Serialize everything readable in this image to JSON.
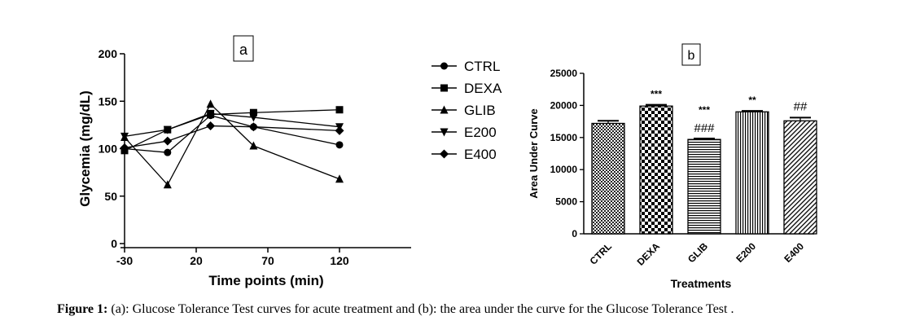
{
  "chart_data": [
    {
      "type": "line",
      "panel_label": "a",
      "x": [
        -30,
        0,
        30,
        60,
        120
      ],
      "xticks": [
        -30,
        20,
        70,
        120
      ],
      "xlim": [
        -30,
        170
      ],
      "yticks": [
        0,
        50,
        100,
        150,
        200
      ],
      "ylim": [
        0,
        200
      ],
      "xlabel": "Time points (min)",
      "ylabel": "Glycemia (mg/dL)",
      "legend_position": "right",
      "series": [
        {
          "name": "CTRL",
          "marker": "circle",
          "values": [
            100,
            96,
            135,
            123,
            104
          ]
        },
        {
          "name": "DEXA",
          "marker": "square",
          "values": [
            98,
            120,
            136,
            138,
            141
          ]
        },
        {
          "name": "GLIB",
          "marker": "triangle-up",
          "values": [
            112,
            62,
            147,
            103,
            68
          ]
        },
        {
          "name": "E200",
          "marker": "triangle-down",
          "values": [
            113,
            120,
            137,
            133,
            123
          ]
        },
        {
          "name": "E400",
          "marker": "diamond",
          "values": [
            101,
            108,
            124,
            123,
            119
          ]
        }
      ]
    },
    {
      "type": "bar",
      "panel_label": "b",
      "categories": [
        "CTRL",
        "DEXA",
        "GLIB",
        "E200",
        "E400"
      ],
      "values": [
        17200,
        19900,
        14700,
        19000,
        17600
      ],
      "errors": [
        400,
        200,
        150,
        150,
        500
      ],
      "annotations": [
        [
          "",
          ""
        ],
        [
          "***",
          ""
        ],
        [
          "***",
          "###"
        ],
        [
          "**",
          ""
        ],
        [
          "##",
          ""
        ]
      ],
      "ylim": [
        0,
        25000
      ],
      "yticks": [
        0,
        5000,
        10000,
        15000,
        20000,
        25000
      ],
      "xlabel": "Treatments",
      "ylabel": "Area Under Curve",
      "patterns": [
        "checker-fine",
        "checker-coarse",
        "horizontal-lines",
        "vertical-lines",
        "diagonal-lines"
      ]
    }
  ],
  "caption": {
    "label": "Figure 1:",
    "text": " (a): Glucose Tolerance Test curves for acute treatment and (b): the area under the curve for the Glucose Tolerance Test ."
  }
}
